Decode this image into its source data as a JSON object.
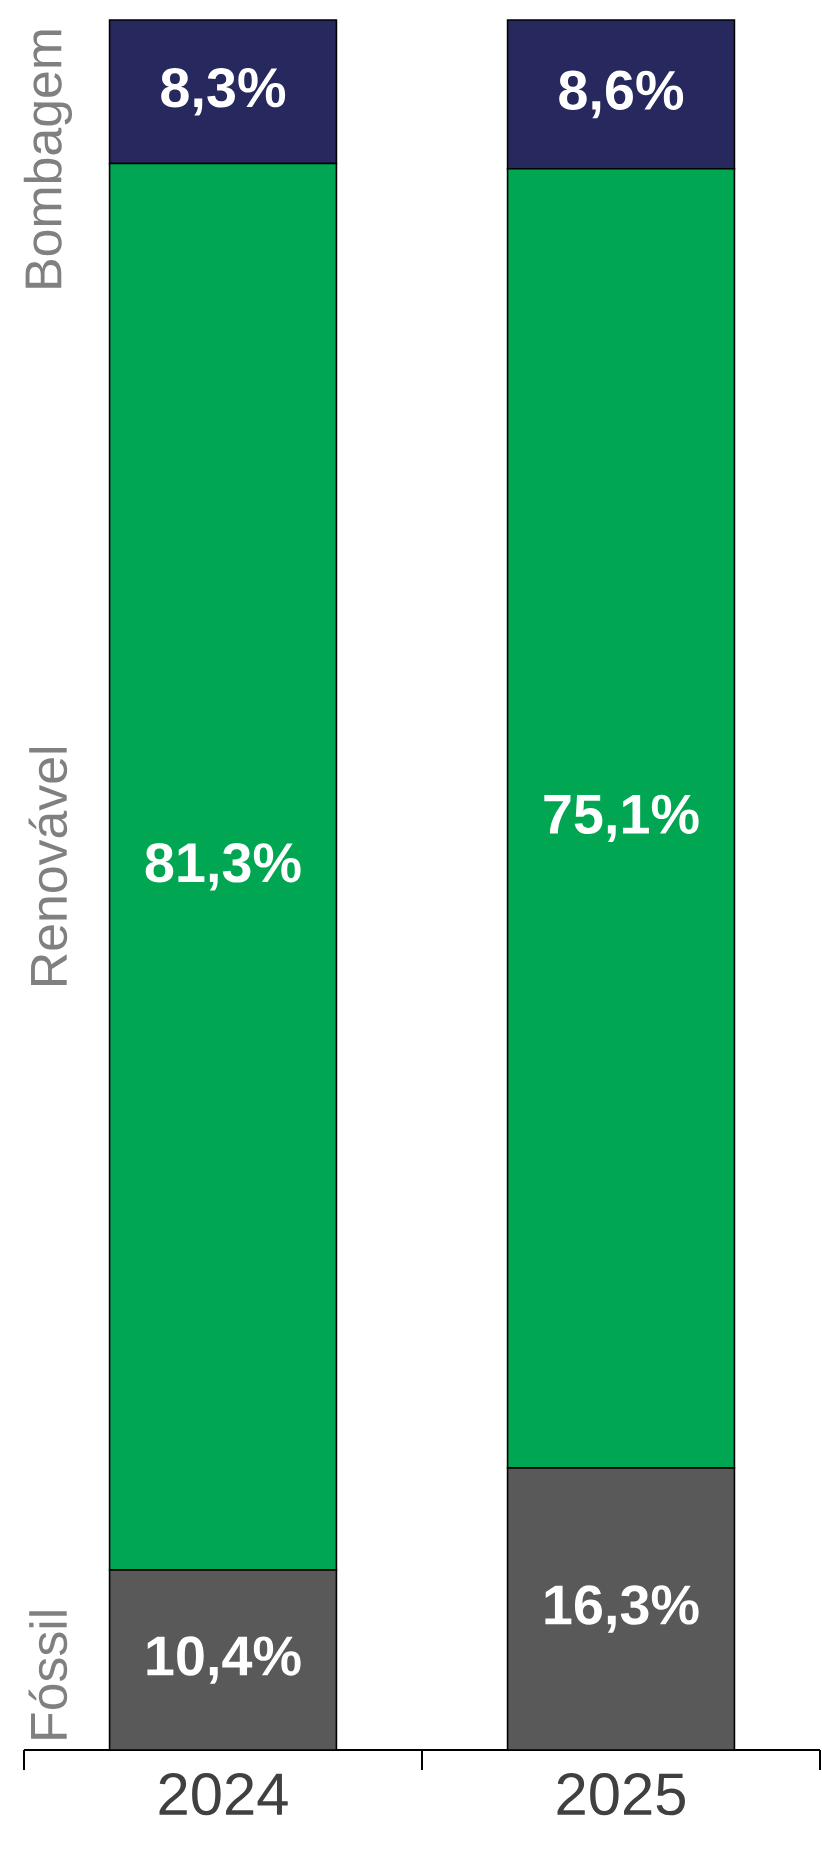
{
  "chart_data": {
    "type": "bar",
    "stacked": true,
    "categories": [
      "2024",
      "2025"
    ],
    "series": [
      {
        "name": "Fóssil",
        "color": "#595959",
        "values": [
          10.4,
          16.3
        ],
        "value_labels": [
          "10,4%",
          "16,3%"
        ]
      },
      {
        "name": "Renovável",
        "color": "#00a651",
        "values": [
          81.3,
          75.1
        ],
        "value_labels": [
          "81,3%",
          "75,1%"
        ]
      },
      {
        "name": "Bombagem",
        "color": "#27295e",
        "values": [
          8.3,
          8.6
        ],
        "value_labels": [
          "8,3%",
          "8,6%"
        ]
      }
    ]
  }
}
